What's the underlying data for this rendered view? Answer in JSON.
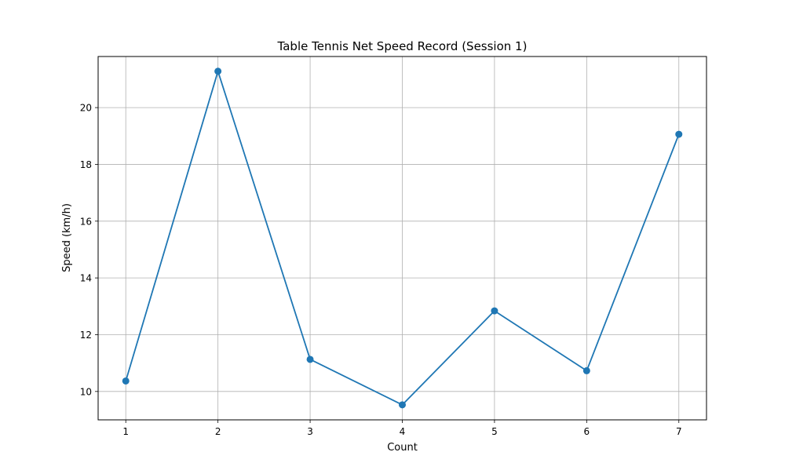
{
  "chart_data": {
    "type": "line",
    "title": "Table Tennis Net Speed Record (Session 1)",
    "xlabel": "Count",
    "ylabel": "Speed (km/h)",
    "x": [
      1,
      2,
      3,
      4,
      5,
      6,
      7
    ],
    "x_ticks": [
      1,
      2,
      3,
      4,
      5,
      6,
      7
    ],
    "y_ticks": [
      10,
      12,
      14,
      16,
      18,
      20
    ],
    "xlim": [
      0.7,
      7.3
    ],
    "ylim": [
      9.0,
      21.8
    ],
    "grid": true,
    "series": [
      {
        "values": [
          10.37,
          21.28,
          11.13,
          9.53,
          12.84,
          10.73,
          19.06
        ],
        "color": "#1f77b4",
        "marker": "circle"
      }
    ]
  }
}
